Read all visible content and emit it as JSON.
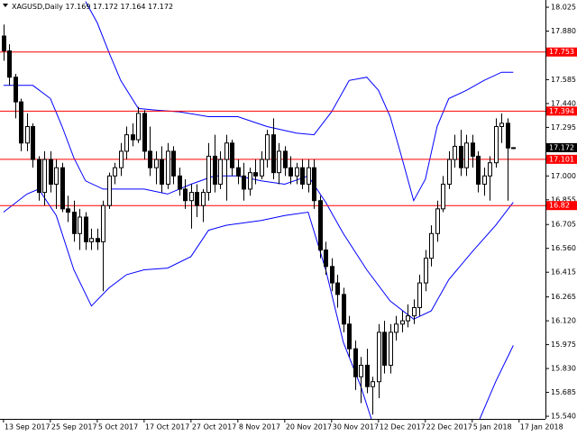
{
  "chart_data": {
    "type": "candlestick",
    "symbol": "XAGUSD,Daily",
    "up_color": "#ffffff",
    "down_color": "#000000",
    "candles": [
      [
        17.85,
        17.92,
        17.7,
        17.76
      ],
      [
        17.76,
        17.8,
        17.55,
        17.6
      ],
      [
        17.6,
        17.62,
        17.35,
        17.45
      ],
      [
        17.45,
        17.47,
        17.15,
        17.2
      ],
      [
        17.2,
        17.38,
        17.15,
        17.3
      ],
      [
        17.3,
        17.32,
        17.05,
        17.1
      ],
      [
        17.1,
        17.12,
        16.85,
        16.9
      ],
      [
        16.9,
        17.15,
        16.82,
        17.1
      ],
      [
        17.1,
        17.15,
        16.9,
        16.95
      ],
      [
        16.95,
        17.1,
        16.8,
        17.05
      ],
      [
        17.05,
        17.08,
        16.78,
        16.8
      ],
      [
        16.8,
        16.88,
        16.72,
        16.78
      ],
      [
        16.78,
        16.85,
        16.6,
        16.65
      ],
      [
        16.65,
        16.8,
        16.55,
        16.75
      ],
      [
        16.75,
        16.78,
        16.55,
        16.6
      ],
      [
        16.6,
        16.68,
        16.55,
        16.62
      ],
      [
        16.62,
        16.68,
        16.55,
        16.6
      ],
      [
        16.6,
        16.85,
        16.3,
        16.82
      ],
      [
        16.82,
        17.02,
        16.8,
        17.0
      ],
      [
        17.0,
        17.08,
        16.95,
        17.05
      ],
      [
        17.05,
        17.2,
        17.0,
        17.15
      ],
      [
        17.15,
        17.3,
        17.1,
        17.25
      ],
      [
        17.25,
        17.32,
        17.18,
        17.22
      ],
      [
        17.22,
        17.42,
        17.2,
        17.38
      ],
      [
        17.38,
        17.4,
        17.1,
        17.15
      ],
      [
        17.15,
        17.3,
        17.0,
        17.05
      ],
      [
        17.05,
        17.15,
        16.95,
        17.1
      ],
      [
        17.1,
        17.18,
        16.9,
        16.95
      ],
      [
        16.95,
        17.2,
        16.92,
        17.15
      ],
      [
        17.15,
        17.18,
        16.95,
        17.0
      ],
      [
        17.0,
        17.05,
        16.88,
        16.92
      ],
      [
        16.92,
        16.98,
        16.8,
        16.85
      ],
      [
        16.85,
        16.95,
        16.68,
        16.9
      ],
      [
        16.9,
        16.95,
        16.75,
        16.82
      ],
      [
        16.82,
        16.92,
        16.72,
        16.9
      ],
      [
        16.9,
        17.2,
        16.85,
        17.12
      ],
      [
        17.12,
        17.25,
        16.9,
        16.95
      ],
      [
        16.95,
        17.15,
        16.92,
        17.1
      ],
      [
        17.1,
        17.25,
        16.85,
        17.2
      ],
      [
        17.2,
        17.22,
        17.0,
        17.05
      ],
      [
        17.05,
        17.1,
        16.95,
        17.0
      ],
      [
        17.0,
        17.08,
        16.85,
        16.92
      ],
      [
        16.92,
        17.05,
        16.88,
        17.02
      ],
      [
        17.02,
        17.1,
        16.95,
        17.0
      ],
      [
        17.0,
        17.15,
        16.98,
        17.1
      ],
      [
        17.1,
        17.28,
        17.05,
        17.25
      ],
      [
        17.25,
        17.35,
        16.98,
        17.02
      ],
      [
        17.02,
        17.2,
        16.95,
        17.15
      ],
      [
        17.15,
        17.18,
        17.0,
        17.05
      ],
      [
        17.05,
        17.12,
        16.95,
        17.0
      ],
      [
        17.0,
        17.08,
        16.95,
        17.05
      ],
      [
        17.05,
        17.1,
        16.92,
        16.95
      ],
      [
        16.95,
        17.1,
        16.9,
        17.05
      ],
      [
        17.05,
        17.1,
        16.8,
        16.85
      ],
      [
        16.85,
        16.88,
        16.5,
        16.55
      ],
      [
        16.55,
        16.6,
        16.4,
        16.45
      ],
      [
        16.45,
        16.5,
        16.3,
        16.35
      ],
      [
        16.35,
        16.4,
        16.2,
        16.28
      ],
      [
        16.28,
        16.32,
        16.05,
        16.1
      ],
      [
        16.1,
        16.15,
        15.9,
        15.95
      ],
      [
        15.95,
        16.0,
        15.7,
        15.78
      ],
      [
        15.78,
        15.9,
        15.62,
        15.85
      ],
      [
        15.85,
        15.95,
        15.68,
        15.72
      ],
      [
        15.72,
        15.78,
        15.55,
        15.75
      ],
      [
        15.75,
        16.1,
        15.65,
        16.05
      ],
      [
        16.05,
        16.12,
        15.8,
        15.85
      ],
      [
        15.85,
        16.1,
        15.8,
        16.05
      ],
      [
        16.05,
        16.15,
        16.0,
        16.1
      ],
      [
        16.1,
        16.18,
        16.05,
        16.12
      ],
      [
        16.12,
        16.22,
        16.08,
        16.15
      ],
      [
        16.15,
        16.25,
        16.1,
        16.2
      ],
      [
        16.2,
        16.4,
        16.15,
        16.35
      ],
      [
        16.35,
        16.55,
        16.3,
        16.5
      ],
      [
        16.5,
        16.7,
        16.45,
        16.65
      ],
      [
        16.65,
        16.85,
        16.6,
        16.8
      ],
      [
        16.8,
        17.0,
        16.78,
        16.95
      ],
      [
        16.95,
        17.15,
        16.92,
        17.1
      ],
      [
        17.1,
        17.25,
        17.05,
        17.18
      ],
      [
        17.18,
        17.28,
        17.0,
        17.05
      ],
      [
        17.05,
        17.25,
        17.0,
        17.2
      ],
      [
        17.2,
        17.25,
        17.05,
        17.12
      ],
      [
        17.12,
        17.15,
        16.9,
        16.95
      ],
      [
        16.95,
        17.05,
        16.88,
        17.0
      ],
      [
        17.0,
        17.12,
        16.85,
        17.08
      ],
      [
        17.08,
        17.35,
        17.05,
        17.3
      ],
      [
        17.3,
        17.38,
        17.2,
        17.32
      ],
      [
        17.32,
        17.35,
        16.85,
        17.17
      ],
      [
        17.169,
        17.172,
        17.164,
        17.172
      ]
    ],
    "bands": [
      {
        "color": "#0000ff",
        "x": [
          14,
          16,
          18,
          20,
          23,
          26,
          30,
          35,
          40,
          45,
          50,
          53,
          56,
          59,
          62,
          64,
          66,
          68,
          70,
          72,
          74,
          76,
          79,
          82,
          85,
          87
        ],
        "values": [
          18.06,
          17.93,
          17.75,
          17.58,
          17.41,
          17.4,
          17.39,
          17.36,
          17.36,
          17.3,
          17.26,
          17.25,
          17.39,
          17.58,
          17.6,
          17.52,
          17.36,
          17.11,
          16.85,
          16.98,
          17.3,
          17.47,
          17.52,
          17.58,
          17.63,
          17.63
        ]
      },
      {
        "color": "#0000ff",
        "x": [
          0,
          5,
          8,
          10,
          12,
          14,
          17,
          20,
          24,
          28,
          32,
          36,
          40,
          44,
          48,
          52,
          55,
          58,
          62,
          66,
          70,
          73,
          76,
          80,
          84,
          87
        ],
        "values": [
          17.55,
          17.55,
          17.47,
          17.3,
          17.11,
          16.97,
          16.92,
          16.92,
          16.92,
          16.89,
          16.95,
          17.0,
          17.0,
          16.97,
          16.95,
          17.0,
          16.84,
          16.65,
          16.43,
          16.24,
          16.13,
          16.18,
          16.37,
          16.54,
          16.7,
          16.84
        ]
      },
      {
        "color": "#0000ff",
        "x": [
          0,
          4,
          6,
          9,
          12,
          15,
          18,
          21,
          24,
          28,
          32,
          35,
          38,
          44,
          48,
          52,
          55,
          58,
          61,
          63,
          70,
          81,
          84,
          87
        ],
        "values": [
          16.78,
          16.89,
          16.92,
          16.76,
          16.43,
          16.21,
          16.32,
          16.4,
          16.43,
          16.44,
          16.51,
          16.67,
          16.7,
          16.73,
          16.76,
          16.78,
          16.43,
          15.99,
          15.72,
          15.5,
          null,
          15.5,
          15.75,
          15.97
        ]
      }
    ],
    "level_color": "#ff0000",
    "levels": [
      17.753,
      17.394,
      17.101,
      16.82
    ],
    "ylim": [
      15.524,
      18.069
    ],
    "yticks": [
      {
        "value": 18.025,
        "label": "18.025"
      },
      {
        "value": 17.88,
        "label": "17.880"
      },
      {
        "value": 17.585,
        "label": "17.585"
      },
      {
        "value": 17.44,
        "label": "17.440"
      },
      {
        "value": 17.295,
        "label": "17.295"
      },
      {
        "value": 17,
        "label": "17.000"
      },
      {
        "value": 16.855,
        "label": "16.855"
      },
      {
        "value": 16.705,
        "label": "16.705"
      },
      {
        "value": 16.56,
        "label": "16.560"
      },
      {
        "value": 16.415,
        "label": "16.415"
      },
      {
        "value": 16.265,
        "label": "16.265"
      },
      {
        "value": 16.12,
        "label": "16.120"
      },
      {
        "value": 15.975,
        "label": "15.975"
      },
      {
        "value": 15.83,
        "label": "15.830"
      },
      {
        "value": 15.685,
        "label": "15.685"
      },
      {
        "value": 15.54,
        "label": "15.540"
      }
    ],
    "xlim": [
      -0.6,
      92.5
    ],
    "xticks": [
      {
        "value": 0,
        "label": "13 Sep 2017"
      },
      {
        "value": 8,
        "label": "25 Sep 2017"
      },
      {
        "value": 16,
        "label": "5 Oct 2017"
      },
      {
        "value": 24,
        "label": "17 Oct 2017"
      },
      {
        "value": 32,
        "label": "27 Oct 2017"
      },
      {
        "value": 40,
        "label": "8 Nov 2017"
      },
      {
        "value": 48,
        "label": "20 Nov 2017"
      },
      {
        "value": 56,
        "label": "30 Nov 2017"
      },
      {
        "value": 64,
        "label": "12 Dec 2017"
      },
      {
        "value": 72,
        "label": "22 Dec 2017"
      },
      {
        "value": 80,
        "label": "5 Jan 2018"
      },
      {
        "value": 88,
        "label": "17 Jan 2018"
      }
    ]
  }
}
